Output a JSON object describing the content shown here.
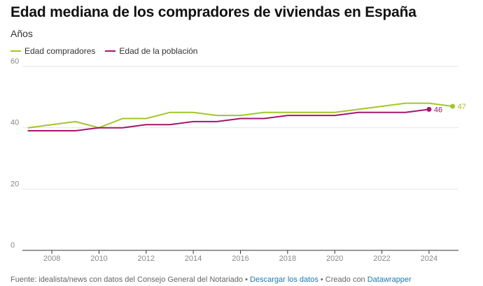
{
  "header": {
    "title": "Edad mediana de los compradores de viviendas en España",
    "subtitle": "Años"
  },
  "colors": {
    "compradores": "#a3c627",
    "poblacion": "#a4166f",
    "grid": "#e6e6e6",
    "axis": "#333333",
    "tick_text": "#888888"
  },
  "chart_data": {
    "type": "line",
    "ylim": [
      0,
      60
    ],
    "xlim": [
      2006.75,
      2025.25
    ],
    "yticks": [
      0,
      20,
      40,
      60
    ],
    "xticks": [
      2008,
      2010,
      2012,
      2014,
      2016,
      2018,
      2020,
      2022,
      2024
    ],
    "series": [
      {
        "name": "Edad compradores",
        "key": "compradores",
        "x": [
          2007,
          2008,
          2009,
          2010,
          2011,
          2012,
          2013,
          2014,
          2015,
          2016,
          2017,
          2018,
          2019,
          2020,
          2021,
          2022,
          2023,
          2024,
          2025
        ],
        "values": [
          40,
          41,
          42,
          40,
          43,
          43,
          45,
          45,
          44,
          44,
          45,
          45,
          45,
          45,
          46,
          47,
          48,
          48,
          47
        ],
        "end_label": "47"
      },
      {
        "name": "Edad de la población",
        "key": "poblacion",
        "x": [
          2007,
          2008,
          2009,
          2010,
          2011,
          2012,
          2013,
          2014,
          2015,
          2016,
          2017,
          2018,
          2019,
          2020,
          2021,
          2022,
          2023,
          2024
        ],
        "values": [
          39,
          39,
          39,
          40,
          40,
          41,
          41,
          42,
          42,
          43,
          43,
          44,
          44,
          44,
          45,
          45,
          45,
          46
        ],
        "end_label": "46"
      }
    ]
  },
  "footer": {
    "source": "Fuente: idealista/news con datos del Consejo General del Notariado",
    "sep1": " • ",
    "download": "Descargar los datos",
    "sep2": " • Creado con ",
    "tool": "Datawrapper"
  }
}
